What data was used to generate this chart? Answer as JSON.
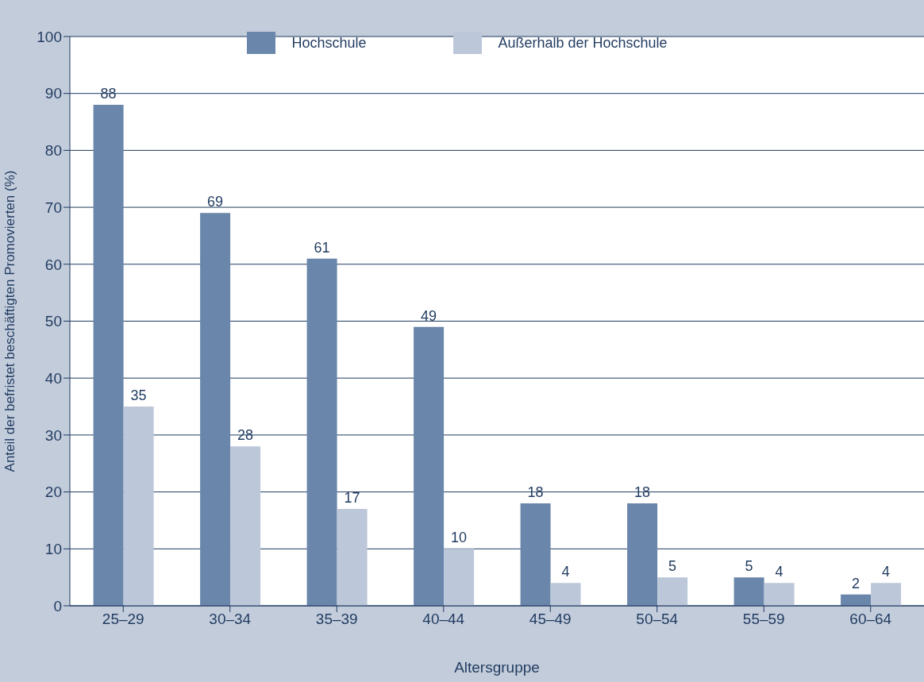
{
  "chart_data": {
    "type": "bar",
    "xlabel": "Altersgruppe",
    "ylabel": "Anteil der befristet beschäftigten Promovierten (%)",
    "categories": [
      "25–29",
      "30–34",
      "35–39",
      "40–44",
      "45–49",
      "50–54",
      "55–59",
      "60–64"
    ],
    "series": [
      {
        "name": "Hochschule",
        "color": "#6a86aa",
        "values": [
          88,
          69,
          61,
          49,
          18,
          18,
          5,
          2
        ]
      },
      {
        "name": "Außerhalb der Hochschule",
        "color": "#bcc7d9",
        "values": [
          35,
          28,
          17,
          10,
          4,
          5,
          4,
          4
        ]
      }
    ],
    "ylim": [
      0,
      100
    ],
    "yticks": [
      0,
      10,
      20,
      30,
      40,
      50,
      60,
      70,
      80,
      90,
      100
    ],
    "grid": "y",
    "legend": "top",
    "data_labels": true
  }
}
